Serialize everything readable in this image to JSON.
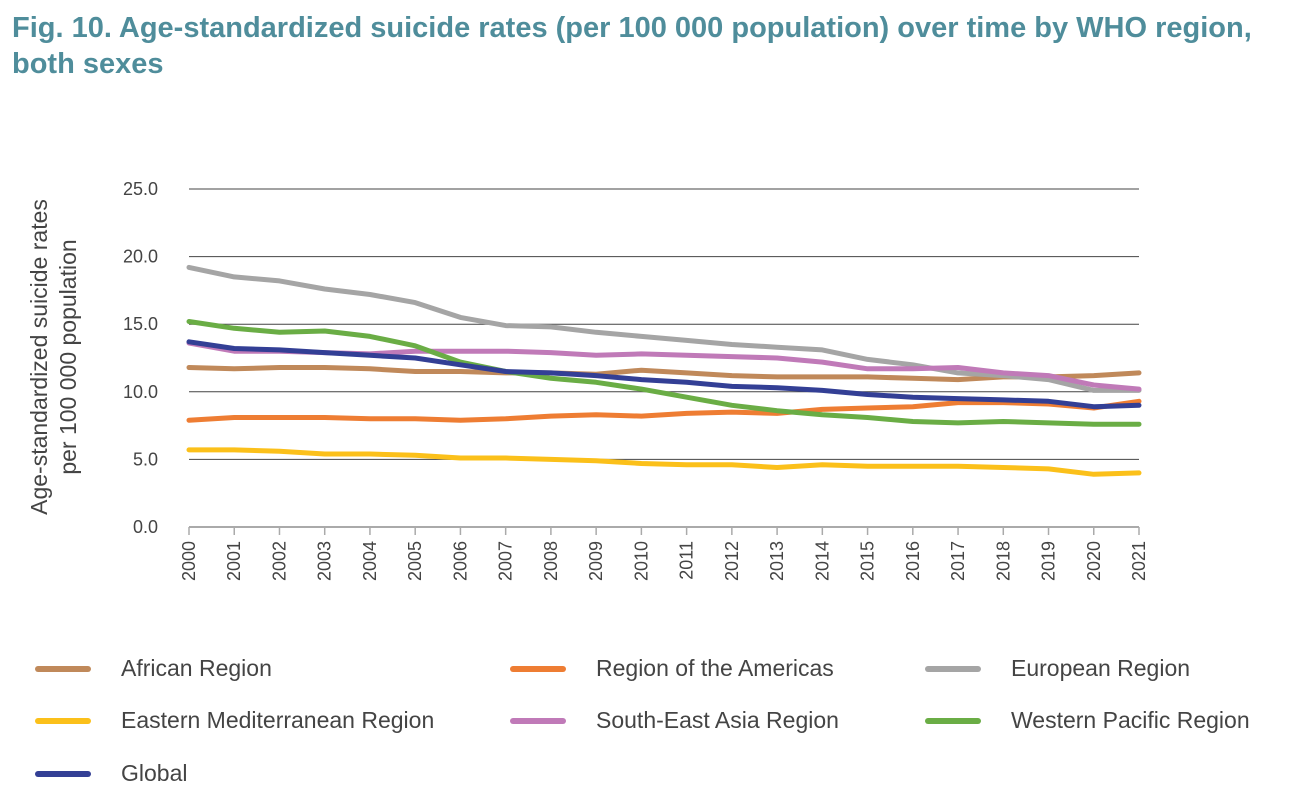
{
  "title": "Fig. 10. Age-standardized suicide rates (per 100 000 population) over time by WHO region, both sexes",
  "chart_data": {
    "type": "line",
    "title": "Fig. 10. Age-standardized suicide rates (per 100 000 population) over time by WHO region, both sexes",
    "xlabel": "",
    "ylabel_lines": [
      "Age-standardized suicide rates",
      "per 100 000 population"
    ],
    "ylim": [
      0,
      25
    ],
    "yticks": [
      "0.0",
      "5.0",
      "10.0",
      "15.0",
      "20.0",
      "25.0"
    ],
    "grid": true,
    "legend_position": "bottom",
    "x": [
      "2000",
      "2001",
      "2002",
      "2003",
      "2004",
      "2005",
      "2006",
      "2007",
      "2008",
      "2009",
      "2010",
      "2011",
      "2012",
      "2013",
      "2014",
      "2015",
      "2016",
      "2017",
      "2018",
      "2019",
      "2020",
      "2021"
    ],
    "series": [
      {
        "name": "African Region",
        "color": "#c0895a",
        "values": [
          11.8,
          11.7,
          11.8,
          11.8,
          11.7,
          11.5,
          11.5,
          11.4,
          11.4,
          11.3,
          11.6,
          11.4,
          11.2,
          11.1,
          11.1,
          11.1,
          11.0,
          10.9,
          11.1,
          11.1,
          11.2,
          11.4
        ]
      },
      {
        "name": "Region of the Americas",
        "color": "#ee7d33",
        "values": [
          7.9,
          8.1,
          8.1,
          8.1,
          8.0,
          8.0,
          7.9,
          8.0,
          8.2,
          8.3,
          8.2,
          8.4,
          8.5,
          8.4,
          8.7,
          8.8,
          8.9,
          9.2,
          9.2,
          9.1,
          8.8,
          9.3
        ]
      },
      {
        "name": "European Region",
        "color": "#a5a5a5",
        "values": [
          19.2,
          18.5,
          18.2,
          17.6,
          17.2,
          16.6,
          15.5,
          14.9,
          14.8,
          14.4,
          14.1,
          13.8,
          13.5,
          13.3,
          13.1,
          12.4,
          12.0,
          11.4,
          11.2,
          10.9,
          10.1,
          10.1
        ]
      },
      {
        "name": "Eastern Mediterranean Region",
        "color": "#fbc01a",
        "values": [
          5.7,
          5.7,
          5.6,
          5.4,
          5.4,
          5.3,
          5.1,
          5.1,
          5.0,
          4.9,
          4.7,
          4.6,
          4.6,
          4.4,
          4.6,
          4.5,
          4.5,
          4.5,
          4.4,
          4.3,
          3.9,
          4.0
        ]
      },
      {
        "name": "South-East Asia Region",
        "color": "#c07ab8",
        "values": [
          13.6,
          13.0,
          13.0,
          12.9,
          12.8,
          13.0,
          13.0,
          13.0,
          12.9,
          12.7,
          12.8,
          12.7,
          12.6,
          12.5,
          12.2,
          11.7,
          11.7,
          11.8,
          11.4,
          11.2,
          10.5,
          10.2
        ]
      },
      {
        "name": "Western Pacific Region",
        "color": "#6aad45",
        "values": [
          15.2,
          14.7,
          14.4,
          14.5,
          14.1,
          13.4,
          12.2,
          11.5,
          11.0,
          10.7,
          10.2,
          9.6,
          9.0,
          8.6,
          8.3,
          8.1,
          7.8,
          7.7,
          7.8,
          7.7,
          7.6,
          7.6
        ]
      },
      {
        "name": "Global",
        "color": "#333f95",
        "values": [
          13.7,
          13.2,
          13.1,
          12.9,
          12.7,
          12.5,
          12.0,
          11.5,
          11.4,
          11.2,
          10.9,
          10.7,
          10.4,
          10.3,
          10.1,
          9.8,
          9.6,
          9.5,
          9.4,
          9.3,
          8.9,
          9.0
        ]
      }
    ]
  }
}
